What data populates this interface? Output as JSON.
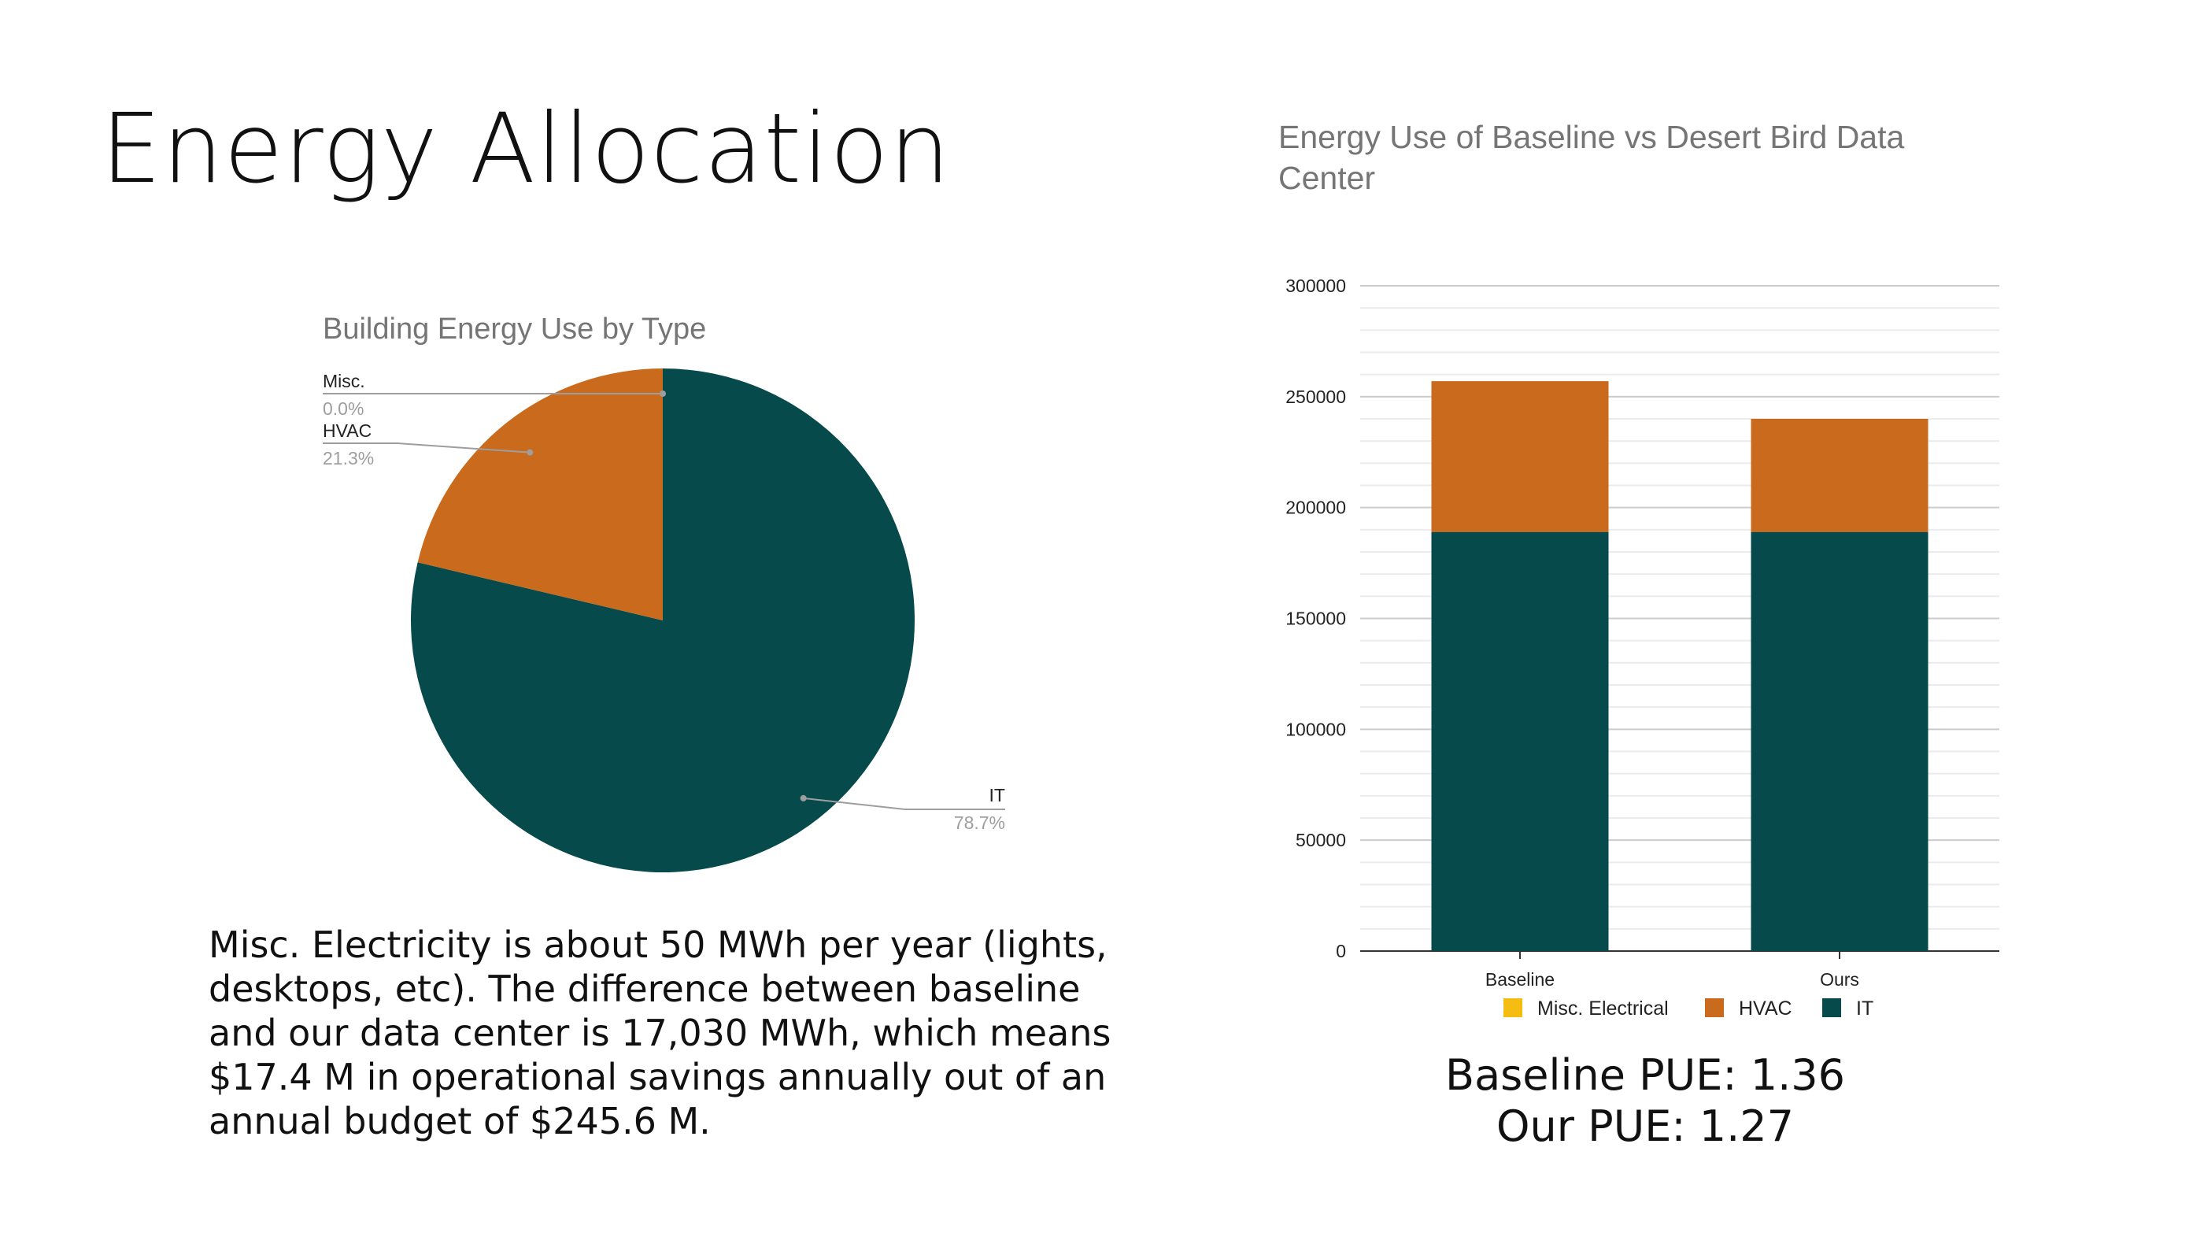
{
  "slide": {
    "title": "Energy Allocation",
    "body_text": "Misc. Electricity is about 50 MWh per year (lights, desktops, etc).  The difference between baseline and our data center is 17,030 MWh, which means $17.4 M in operational savings annually out of an annual budget of $245.6 M.",
    "pue_baseline": "Baseline PUE: 1.36",
    "pue_ours": "Our PUE: 1.27"
  },
  "colors": {
    "it": "#074a4c",
    "hvac": "#c96a1c",
    "misc": "#f5bd11"
  },
  "chart_data": [
    {
      "type": "pie",
      "title": "Building Energy Use by Type",
      "slices": [
        {
          "label": "IT",
          "value": 78.7,
          "pct_label": "78.7%"
        },
        {
          "label": "HVAC",
          "value": 21.3,
          "pct_label": "21.3%"
        },
        {
          "label": "Misc.",
          "value": 0.0,
          "pct_label": "0.0%"
        }
      ]
    },
    {
      "type": "bar",
      "stacked": true,
      "title": "Energy Use of Baseline vs Desert Bird Data Center",
      "categories": [
        "Baseline",
        "Ours"
      ],
      "series": [
        {
          "name": "IT",
          "values": [
            189000,
            189000
          ]
        },
        {
          "name": "HVAC",
          "values": [
            68000,
            51000
          ]
        },
        {
          "name": "Misc. Electrical",
          "values": [
            0,
            0
          ]
        }
      ],
      "legend_order": [
        "Misc. Electrical",
        "HVAC",
        "IT"
      ],
      "ylim": [
        0,
        300000
      ],
      "yticks": [
        "0",
        "50000",
        "100000",
        "150000",
        "200000",
        "250000",
        "300000"
      ],
      "grid": true,
      "legend": "bottom"
    }
  ]
}
